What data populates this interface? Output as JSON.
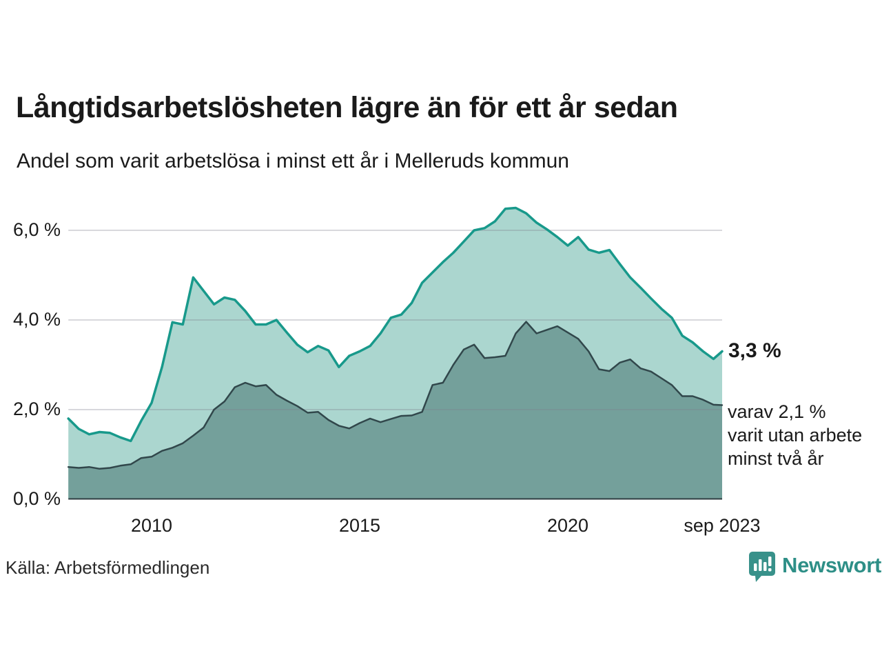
{
  "header": {
    "title": "Långtidsarbetslösheten lägre än för ett år sedan",
    "subtitle": "Andel som varit arbetslösa i minst ett år i Melleruds kommun"
  },
  "annotations": {
    "end_value": "3,3 %",
    "sub_line1": "varav 2,1 %",
    "sub_line2": "varit utan arbete",
    "sub_line3": "minst två år"
  },
  "footer": {
    "source": "Källa: Arbetsförmedlingen",
    "brand": "Newsworthy"
  },
  "colors": {
    "text": "#1a1a1a",
    "grid": "#e3e3e8",
    "baseline": "#2e3c40",
    "brand_teal": "#2e8f87",
    "logo_badge": "#38918a"
  },
  "chart_data": {
    "type": "area",
    "title": "Långtidsarbetslösheten lägre än för ett år sedan",
    "subtitle": "Andel som varit arbetslösa i minst ett år i Melleruds kommun",
    "x_unit": "decimal_year",
    "xlim": [
      2008.0,
      2023.708
    ],
    "ylim": [
      0,
      6.8
    ],
    "grid": true,
    "legend_position": "none",
    "x": [
      2008.0,
      2008.25,
      2008.5,
      2008.75,
      2009.0,
      2009.25,
      2009.5,
      2009.75,
      2010.0,
      2010.25,
      2010.5,
      2010.75,
      2011.0,
      2011.25,
      2011.5,
      2011.75,
      2012.0,
      2012.25,
      2012.5,
      2012.75,
      2013.0,
      2013.25,
      2013.5,
      2013.75,
      2014.0,
      2014.25,
      2014.5,
      2014.75,
      2015.0,
      2015.25,
      2015.5,
      2015.75,
      2016.0,
      2016.25,
      2016.5,
      2016.75,
      2017.0,
      2017.25,
      2017.5,
      2017.75,
      2018.0,
      2018.25,
      2018.5,
      2018.75,
      2019.0,
      2019.25,
      2019.5,
      2019.75,
      2020.0,
      2020.25,
      2020.5,
      2020.75,
      2021.0,
      2021.25,
      2021.5,
      2021.75,
      2022.0,
      2022.25,
      2022.5,
      2022.75,
      2023.0,
      2023.25,
      2023.5,
      2023.708
    ],
    "series": [
      {
        "name": "Andel som varit arbetslösa i minst ett år",
        "end_label": "3,3 %",
        "line_color": "#18998b",
        "fill_color": "#abd6cf",
        "line_width": 3.5,
        "values": [
          1.8,
          1.57,
          1.45,
          1.5,
          1.48,
          1.38,
          1.3,
          1.75,
          2.15,
          2.95,
          3.95,
          3.9,
          4.95,
          4.65,
          4.35,
          4.5,
          4.45,
          4.2,
          3.9,
          3.9,
          4.0,
          3.72,
          3.45,
          3.28,
          3.42,
          3.32,
          2.95,
          3.2,
          3.3,
          3.42,
          3.7,
          4.05,
          4.12,
          4.38,
          4.83,
          5.06,
          5.29,
          5.5,
          5.75,
          6.0,
          6.05,
          6.2,
          6.48,
          6.5,
          6.38,
          6.17,
          6.02,
          5.85,
          5.66,
          5.85,
          5.57,
          5.5,
          5.56,
          5.25,
          4.95,
          4.72,
          4.48,
          4.25,
          4.05,
          3.65,
          3.5,
          3.3,
          3.13,
          3.3
        ]
      },
      {
        "name": "varav varit utan arbete minst två år",
        "end_label": "2,1 %",
        "line_color": "#31474b",
        "fill_color": "#74a09b",
        "line_width": 2.5,
        "values": [
          0.72,
          0.7,
          0.72,
          0.68,
          0.7,
          0.75,
          0.78,
          0.92,
          0.95,
          1.08,
          1.15,
          1.25,
          1.42,
          1.6,
          2.0,
          2.18,
          2.5,
          2.6,
          2.52,
          2.55,
          2.33,
          2.2,
          2.08,
          1.93,
          1.95,
          1.77,
          1.64,
          1.58,
          1.7,
          1.8,
          1.72,
          1.79,
          1.86,
          1.87,
          1.95,
          2.55,
          2.6,
          3.0,
          3.34,
          3.45,
          3.15,
          3.17,
          3.2,
          3.7,
          3.96,
          3.7,
          3.78,
          3.86,
          3.72,
          3.58,
          3.3,
          2.9,
          2.86,
          3.05,
          3.12,
          2.92,
          2.85,
          2.7,
          2.55,
          2.3,
          2.3,
          2.22,
          2.11,
          2.1
        ]
      }
    ],
    "y_ticks": [
      {
        "label": "0,0 %",
        "value": 0
      },
      {
        "label": "2,0 %",
        "value": 2
      },
      {
        "label": "4,0 %",
        "value": 4
      },
      {
        "label": "6,0 %",
        "value": 6
      }
    ],
    "x_ticks": [
      {
        "label": "2010",
        "t": 2010
      },
      {
        "label": "2015",
        "t": 2015
      },
      {
        "label": "2020",
        "t": 2020
      },
      {
        "label": "sep 2023",
        "t": 2023.708
      }
    ]
  }
}
